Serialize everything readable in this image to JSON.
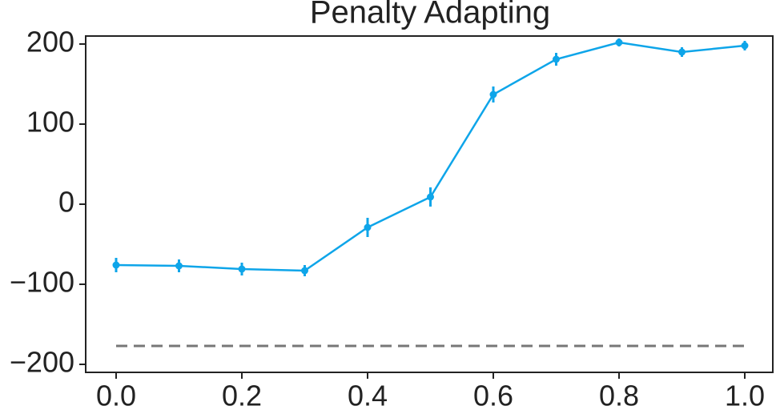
{
  "chart_data": {
    "type": "line",
    "title": "Penalty Adapting",
    "x": [
      0.0,
      0.1,
      0.2,
      0.3,
      0.4,
      0.5,
      0.6,
      0.7,
      0.8,
      0.9,
      1.0
    ],
    "series": [
      {
        "color": "#0ea5e9",
        "values": [
          -76,
          -77,
          -81,
          -83,
          -29,
          9,
          137,
          181,
          202,
          190,
          198
        ],
        "errors": [
          9,
          8,
          8,
          7,
          12,
          12,
          10,
          8,
          5,
          6,
          6
        ]
      }
    ],
    "reference_line": {
      "value": -177,
      "color": "#777777",
      "dashed": true
    },
    "xlim": [
      -0.0484,
      1.0446
    ],
    "ylim": [
      -210,
      210
    ],
    "xticks": [
      {
        "value": 0.0,
        "label": "0.0"
      },
      0.2,
      0.4,
      0.6,
      0.8,
      {
        "value": 1.0,
        "label": "1.0"
      }
    ],
    "yticks": [
      {
        "value": -200,
        "label": "−200"
      },
      {
        "value": -100,
        "label": "−100"
      },
      0,
      100,
      200
    ],
    "grid": false
  }
}
